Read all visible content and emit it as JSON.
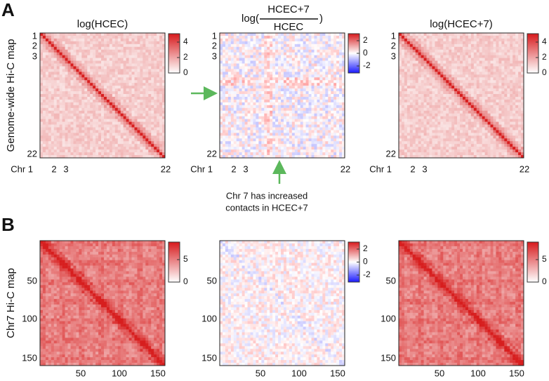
{
  "panels": [
    {
      "label": "A",
      "row_label": "Genome-wide Hi-C map",
      "y_labels": [
        "1",
        "2",
        "3",
        "22"
      ],
      "x_labels": [
        "Chr 1",
        "2",
        "3",
        "22"
      ],
      "maps": [
        {
          "title": "log(HCEC)",
          "colorbar_ticks": [
            4,
            2,
            0
          ]
        },
        {
          "title": {
            "prefix": "log(",
            "numerator": "HCEC+7",
            "denominator": "HCEC",
            "suffix": ")"
          },
          "colorbar_ticks": [
            2,
            0,
            -2
          ]
        },
        {
          "title": "log(HCEC+7)",
          "colorbar_ticks": [
            4,
            2,
            0
          ]
        }
      ]
    },
    {
      "label": "B",
      "row_label": "Chr7 Hi-C map",
      "y_labels": [
        "50",
        "100",
        "150"
      ],
      "x_labels": [
        "50",
        "100",
        "150"
      ],
      "maps": [
        {
          "colorbar_ticks": [
            5,
            0
          ]
        },
        {
          "colorbar_ticks": [
            2,
            0,
            -2
          ]
        },
        {
          "colorbar_ticks": [
            5,
            0
          ]
        }
      ]
    }
  ],
  "annotation": [
    "Chr 7 has increased",
    "contacts in HCEC+7"
  ]
}
